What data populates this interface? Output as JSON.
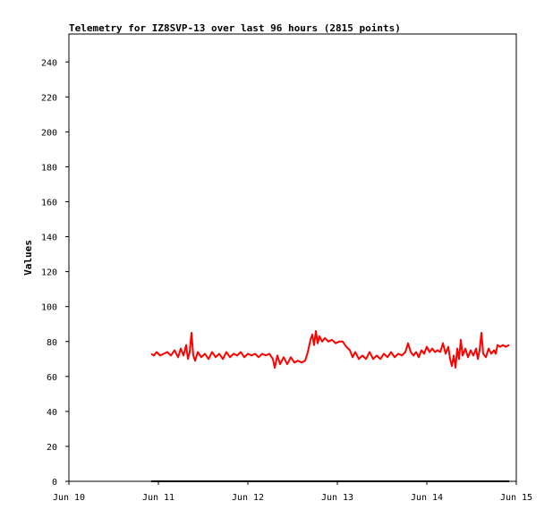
{
  "chart_data": {
    "type": "line",
    "title": "Telemetry for IZ8SVP-13 over last 96 hours (2815 points)",
    "xlabel": "",
    "ylabel": "Values",
    "x_ticks": [
      "Jun 10",
      "Jun 11",
      "Jun 12",
      "Jun 13",
      "Jun 14",
      "Jun 15"
    ],
    "xlim": [
      0,
      5
    ],
    "x_unit": "days from Jun 10 00:00",
    "y_ticks": [
      0,
      20,
      40,
      60,
      80,
      100,
      120,
      140,
      160,
      180,
      200,
      220,
      240
    ],
    "ylim": [
      0,
      256
    ],
    "grid": false,
    "series": [
      {
        "name": "",
        "color": "#ff0000",
        "points": [
          [
            0.92,
            73
          ],
          [
            0.95,
            72
          ],
          [
            0.98,
            74
          ],
          [
            1.02,
            72
          ],
          [
            1.06,
            73
          ],
          [
            1.1,
            74
          ],
          [
            1.14,
            72
          ],
          [
            1.18,
            75
          ],
          [
            1.22,
            71
          ],
          [
            1.25,
            76
          ],
          [
            1.28,
            72
          ],
          [
            1.31,
            78
          ],
          [
            1.33,
            70
          ],
          [
            1.35,
            74
          ],
          [
            1.37,
            85
          ],
          [
            1.39,
            72
          ],
          [
            1.41,
            69
          ],
          [
            1.44,
            74
          ],
          [
            1.48,
            71
          ],
          [
            1.52,
            73
          ],
          [
            1.56,
            70
          ],
          [
            1.6,
            74
          ],
          [
            1.64,
            71
          ],
          [
            1.68,
            73
          ],
          [
            1.72,
            70
          ],
          [
            1.76,
            74
          ],
          [
            1.8,
            71
          ],
          [
            1.84,
            73
          ],
          [
            1.88,
            72
          ],
          [
            1.92,
            74
          ],
          [
            1.96,
            71
          ],
          [
            2.0,
            73
          ],
          [
            2.04,
            72
          ],
          [
            2.08,
            73
          ],
          [
            2.12,
            71
          ],
          [
            2.16,
            73
          ],
          [
            2.2,
            72
          ],
          [
            2.24,
            73
          ],
          [
            2.28,
            70
          ],
          [
            2.3,
            65
          ],
          [
            2.33,
            72
          ],
          [
            2.36,
            67
          ],
          [
            2.4,
            71
          ],
          [
            2.44,
            67
          ],
          [
            2.48,
            71
          ],
          [
            2.52,
            68
          ],
          [
            2.56,
            69
          ],
          [
            2.6,
            68
          ],
          [
            2.64,
            69
          ],
          [
            2.67,
            74
          ],
          [
            2.7,
            81
          ],
          [
            2.72,
            84
          ],
          [
            2.74,
            78
          ],
          [
            2.76,
            86
          ],
          [
            2.78,
            79
          ],
          [
            2.8,
            83
          ],
          [
            2.83,
            80
          ],
          [
            2.86,
            82
          ],
          [
            2.9,
            80
          ],
          [
            2.94,
            81
          ],
          [
            2.98,
            79
          ],
          [
            3.02,
            80
          ],
          [
            3.06,
            80
          ],
          [
            3.1,
            77
          ],
          [
            3.14,
            75
          ],
          [
            3.17,
            71
          ],
          [
            3.2,
            74
          ],
          [
            3.24,
            70
          ],
          [
            3.28,
            72
          ],
          [
            3.32,
            70
          ],
          [
            3.36,
            74
          ],
          [
            3.4,
            70
          ],
          [
            3.44,
            72
          ],
          [
            3.48,
            70
          ],
          [
            3.52,
            73
          ],
          [
            3.56,
            71
          ],
          [
            3.6,
            74
          ],
          [
            3.64,
            71
          ],
          [
            3.68,
            73
          ],
          [
            3.72,
            72
          ],
          [
            3.76,
            74
          ],
          [
            3.79,
            79
          ],
          [
            3.82,
            74
          ],
          [
            3.85,
            72
          ],
          [
            3.88,
            74
          ],
          [
            3.91,
            71
          ],
          [
            3.94,
            75
          ],
          [
            3.97,
            73
          ],
          [
            4.0,
            77
          ],
          [
            4.03,
            74
          ],
          [
            4.06,
            76
          ],
          [
            4.09,
            74
          ],
          [
            4.12,
            75
          ],
          [
            4.15,
            74
          ],
          [
            4.18,
            79
          ],
          [
            4.21,
            73
          ],
          [
            4.24,
            77
          ],
          [
            4.26,
            70
          ],
          [
            4.28,
            66
          ],
          [
            4.3,
            72
          ],
          [
            4.32,
            65
          ],
          [
            4.34,
            76
          ],
          [
            4.36,
            70
          ],
          [
            4.38,
            81
          ],
          [
            4.4,
            72
          ],
          [
            4.43,
            76
          ],
          [
            4.46,
            71
          ],
          [
            4.49,
            75
          ],
          [
            4.52,
            72
          ],
          [
            4.55,
            76
          ],
          [
            4.57,
            70
          ],
          [
            4.59,
            75
          ],
          [
            4.61,
            85
          ],
          [
            4.63,
            73
          ],
          [
            4.66,
            71
          ],
          [
            4.69,
            76
          ],
          [
            4.72,
            73
          ],
          [
            4.75,
            75
          ],
          [
            4.77,
            73
          ],
          [
            4.79,
            78
          ],
          [
            4.82,
            77
          ],
          [
            4.85,
            78
          ],
          [
            4.88,
            77
          ],
          [
            4.92,
            78
          ]
        ]
      },
      {
        "name": "",
        "color": "#000000",
        "points": [
          [
            0.92,
            0
          ],
          [
            4.92,
            0
          ]
        ]
      }
    ]
  }
}
